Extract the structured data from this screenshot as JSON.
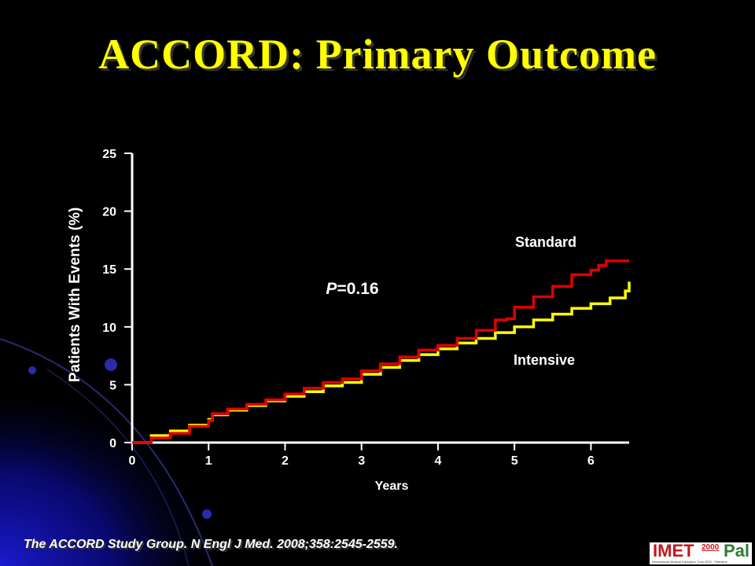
{
  "slide": {
    "title": "ACCORD: Primary Outcome",
    "citation": "The ACCORD Study Group. N Engl J Med. 2008;358:2545-2559."
  },
  "logo": {
    "name": "IMET",
    "year": "2000",
    "suffix": "Pal",
    "tagline": "International Medical Education Trust 2000 - Palestine"
  },
  "colors": {
    "background": "#000000",
    "title": "#ffff00",
    "standard": "#e00000",
    "intensive": "#ffff00",
    "axis": "#ffffff"
  },
  "chart_data": {
    "type": "line",
    "title": "",
    "xlabel": "Years",
    "ylabel": "Patients With Events (%)",
    "xlim": [
      0,
      6.5
    ],
    "ylim": [
      0,
      25
    ],
    "x_ticks": [
      0,
      1,
      2,
      3,
      4,
      5,
      6
    ],
    "y_ticks": [
      0,
      5,
      10,
      15,
      20,
      25
    ],
    "grid": false,
    "annotation": "P=0.16",
    "series": [
      {
        "name": "Standard",
        "color": "#e00000",
        "x": [
          0,
          0.25,
          0.5,
          0.75,
          1.0,
          1.05,
          1.25,
          1.5,
          1.75,
          2.0,
          2.25,
          2.5,
          2.75,
          3.0,
          3.25,
          3.5,
          3.75,
          4.0,
          4.25,
          4.5,
          4.75,
          4.9,
          5.0,
          5.25,
          5.5,
          5.75,
          6.0,
          6.1,
          6.2,
          6.5
        ],
        "values": [
          0,
          0.4,
          0.8,
          1.4,
          1.9,
          2.5,
          2.9,
          3.3,
          3.7,
          4.2,
          4.7,
          5.2,
          5.5,
          6.2,
          6.8,
          7.4,
          8.0,
          8.4,
          9.0,
          9.7,
          10.6,
          10.7,
          11.7,
          12.6,
          13.5,
          14.5,
          14.9,
          15.3,
          15.7,
          15.7
        ]
      },
      {
        "name": "Intensive",
        "color": "#ffff00",
        "x": [
          0,
          0.25,
          0.5,
          0.75,
          1.0,
          1.05,
          1.25,
          1.5,
          1.75,
          2.0,
          2.25,
          2.5,
          2.75,
          3.0,
          3.25,
          3.5,
          3.75,
          4.0,
          4.25,
          4.5,
          4.75,
          5.0,
          5.25,
          5.5,
          5.75,
          6.0,
          6.25,
          6.45,
          6.5
        ],
        "values": [
          0,
          0.6,
          1.0,
          1.5,
          2.0,
          2.4,
          2.8,
          3.2,
          3.6,
          4.0,
          4.4,
          4.9,
          5.2,
          5.9,
          6.5,
          7.1,
          7.6,
          8.1,
          8.6,
          9.0,
          9.5,
          10.0,
          10.6,
          11.1,
          11.6,
          12.0,
          12.5,
          13.1,
          13.9
        ]
      }
    ]
  }
}
